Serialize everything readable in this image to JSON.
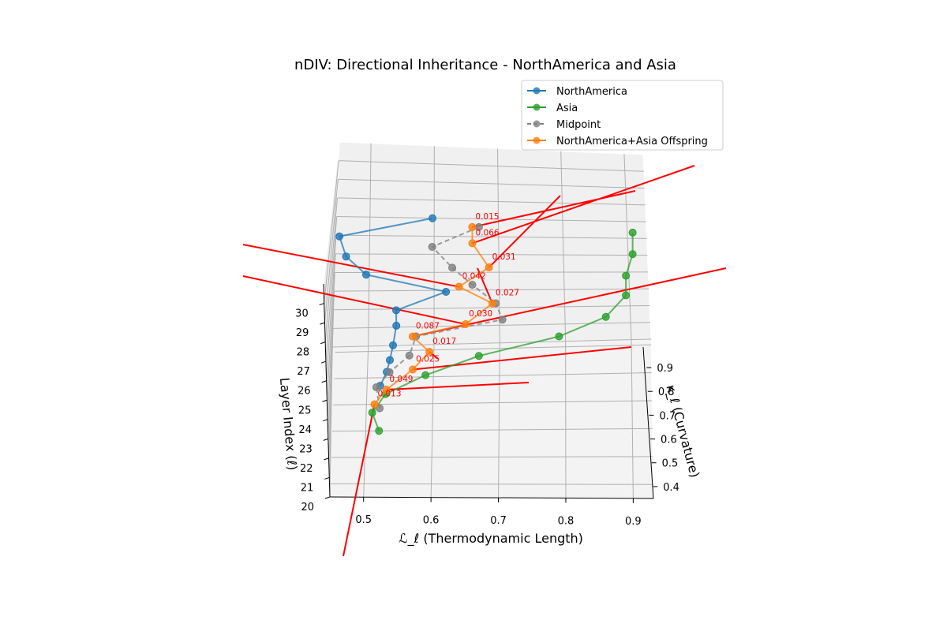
{
  "chart_data": {
    "type": "scatter3d",
    "title": "nDIV: Directional Inheritance - NorthAmerica and Asia",
    "xlabel": "ℒ_ℓ (Thermodynamic Length)",
    "ylabel": "κ_ℓ (Curvature)",
    "zlabel": "Layer Index (ℓ)",
    "xlim": [
      0.45,
      0.93
    ],
    "ylim": [
      0.35,
      0.92
    ],
    "zlim": [
      20,
      31
    ],
    "xticks": [
      "0.5",
      "0.6",
      "0.7",
      "0.8",
      "0.9"
    ],
    "yticks": [
      "0.4",
      "0.5",
      "0.6",
      "0.7",
      "0.8",
      "0.9"
    ],
    "zticks": [
      "20",
      "21",
      "22",
      "23",
      "24",
      "25",
      "26",
      "27",
      "28",
      "29",
      "30"
    ],
    "grid": true,
    "legend_position": "upper-right",
    "layers": [
      20,
      21,
      22,
      23,
      24,
      25,
      26,
      27,
      28,
      29,
      30
    ],
    "series": [
      {
        "name": "NorthAmerica",
        "color": "#1f77b4",
        "x": [
          0.52,
          0.53,
          0.535,
          0.54,
          0.545,
          0.545,
          0.62,
          0.5,
          0.47,
          0.46,
          0.6
        ],
        "y": [
          0.5,
          0.52,
          0.55,
          0.57,
          0.57,
          0.59,
          0.6,
          0.61,
          0.62,
          0.62,
          0.64
        ],
        "z": [
          20,
          21,
          22,
          23,
          24,
          25,
          26,
          27,
          28,
          29,
          30
        ]
      },
      {
        "name": "Asia",
        "color": "#2ca02c",
        "x": [
          0.52,
          0.51,
          0.53,
          0.59,
          0.67,
          0.79,
          0.86,
          0.89,
          0.89,
          0.9,
          0.9
        ],
        "y": [
          0.67,
          0.68,
          0.69,
          0.7,
          0.71,
          0.72,
          0.73,
          0.73,
          0.74,
          0.74,
          0.74
        ],
        "z": [
          20,
          21,
          22,
          23,
          24,
          25,
          26,
          27,
          28,
          29,
          30
        ]
      },
      {
        "name": "Midpoint",
        "color": "#7f7f7f",
        "dashed": true,
        "x": [
          0.52,
          0.515,
          0.535,
          0.565,
          0.575,
          0.705,
          0.695,
          0.66,
          0.63,
          0.6,
          0.67
        ],
        "y": [
          0.585,
          0.58,
          0.6,
          0.615,
          0.62,
          0.64,
          0.66,
          0.67,
          0.69,
          0.69,
          0.7
        ],
        "z": [
          20,
          21,
          22,
          23,
          24,
          25,
          26,
          27,
          28,
          29,
          30
        ]
      },
      {
        "name": "NorthAmerica+Asia Offspring",
        "color": "#ff7f0e",
        "x": [
          0.512,
          0.53,
          0.57,
          0.595,
          0.57,
          0.65,
          0.69,
          0.64,
          0.685,
          0.66,
          0.66
        ],
        "y": [
          0.57,
          0.59,
          0.59,
          0.6,
          0.62,
          0.66,
          0.66,
          0.68,
          0.69,
          0.67,
          0.7
        ],
        "z": [
          20,
          21,
          22,
          23,
          24,
          25,
          26,
          27,
          28,
          29,
          30
        ]
      }
    ],
    "offspring_annotations": [
      "0.013",
      "0.049",
      "0.025",
      "0.017",
      "0.087",
      "0.030",
      "0.027",
      "0.042",
      "0.031",
      "0.066",
      "0.015"
    ],
    "direction_vectors_color": "#ff0000"
  }
}
